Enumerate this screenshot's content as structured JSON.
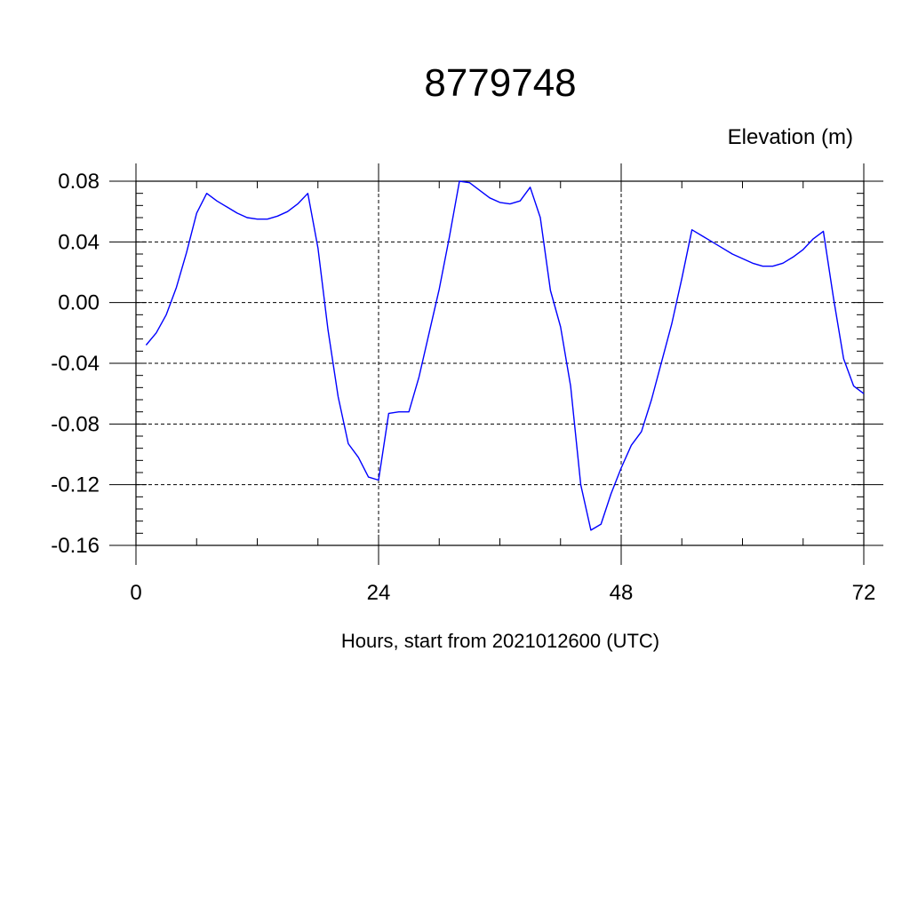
{
  "chart_data": {
    "type": "line",
    "title": "8779748",
    "ylabel": "Elevation (m)",
    "xlabel": "Hours, start from 2021012600 (UTC)",
    "xlim": [
      0,
      72
    ],
    "ylim": [
      -0.16,
      0.08
    ],
    "x_ticks": [
      0,
      24,
      48,
      72
    ],
    "x_tick_labels": [
      "0",
      "24",
      "48",
      "72"
    ],
    "x_minor_step": 6,
    "y_ticks": [
      -0.16,
      -0.12,
      -0.08,
      -0.04,
      0.0,
      0.04,
      0.08
    ],
    "y_tick_labels": [
      "-0.16",
      "-0.12",
      "-0.08",
      "-0.04",
      "0.00",
      "0.04",
      "0.08"
    ],
    "y_minor_step": 0.008,
    "grid": true,
    "grid_style": "dashed",
    "series": [
      {
        "color": "#0000ff",
        "x": [
          1,
          2,
          3,
          4,
          5,
          6,
          7,
          8,
          9,
          10,
          11,
          12,
          13,
          14,
          15,
          16,
          17,
          18,
          19,
          20,
          21,
          22,
          23,
          24,
          25,
          26,
          27,
          28,
          29,
          30,
          31,
          32,
          33,
          34,
          35,
          36,
          37,
          38,
          39,
          40,
          41,
          42,
          43,
          44,
          45,
          46,
          47,
          48,
          49,
          50,
          51,
          52,
          53,
          54,
          55,
          56,
          57,
          58,
          59,
          60,
          61,
          62,
          63,
          64,
          65,
          66,
          67,
          68,
          69,
          70,
          71,
          72
        ],
        "values": [
          -0.028,
          -0.02,
          -0.008,
          0.01,
          0.033,
          0.059,
          0.072,
          0.067,
          0.063,
          0.059,
          0.056,
          0.055,
          0.055,
          0.057,
          0.06,
          0.065,
          0.072,
          0.036,
          -0.018,
          -0.062,
          -0.093,
          -0.102,
          -0.115,
          -0.117,
          -0.073,
          -0.072,
          -0.072,
          -0.049,
          -0.02,
          0.009,
          0.043,
          0.08,
          0.079,
          0.074,
          0.069,
          0.066,
          0.065,
          0.067,
          0.076,
          0.056,
          0.008,
          -0.016,
          -0.055,
          -0.12,
          -0.15,
          -0.146,
          -0.126,
          -0.109,
          -0.094,
          -0.085,
          -0.064,
          -0.039,
          -0.014,
          0.016,
          0.048,
          0.044,
          0.04,
          0.036,
          0.032,
          0.029,
          0.026,
          0.024,
          0.024,
          0.026,
          0.03,
          0.035,
          0.042,
          0.047,
          0.003,
          -0.037,
          -0.055,
          -0.06
        ]
      }
    ]
  }
}
